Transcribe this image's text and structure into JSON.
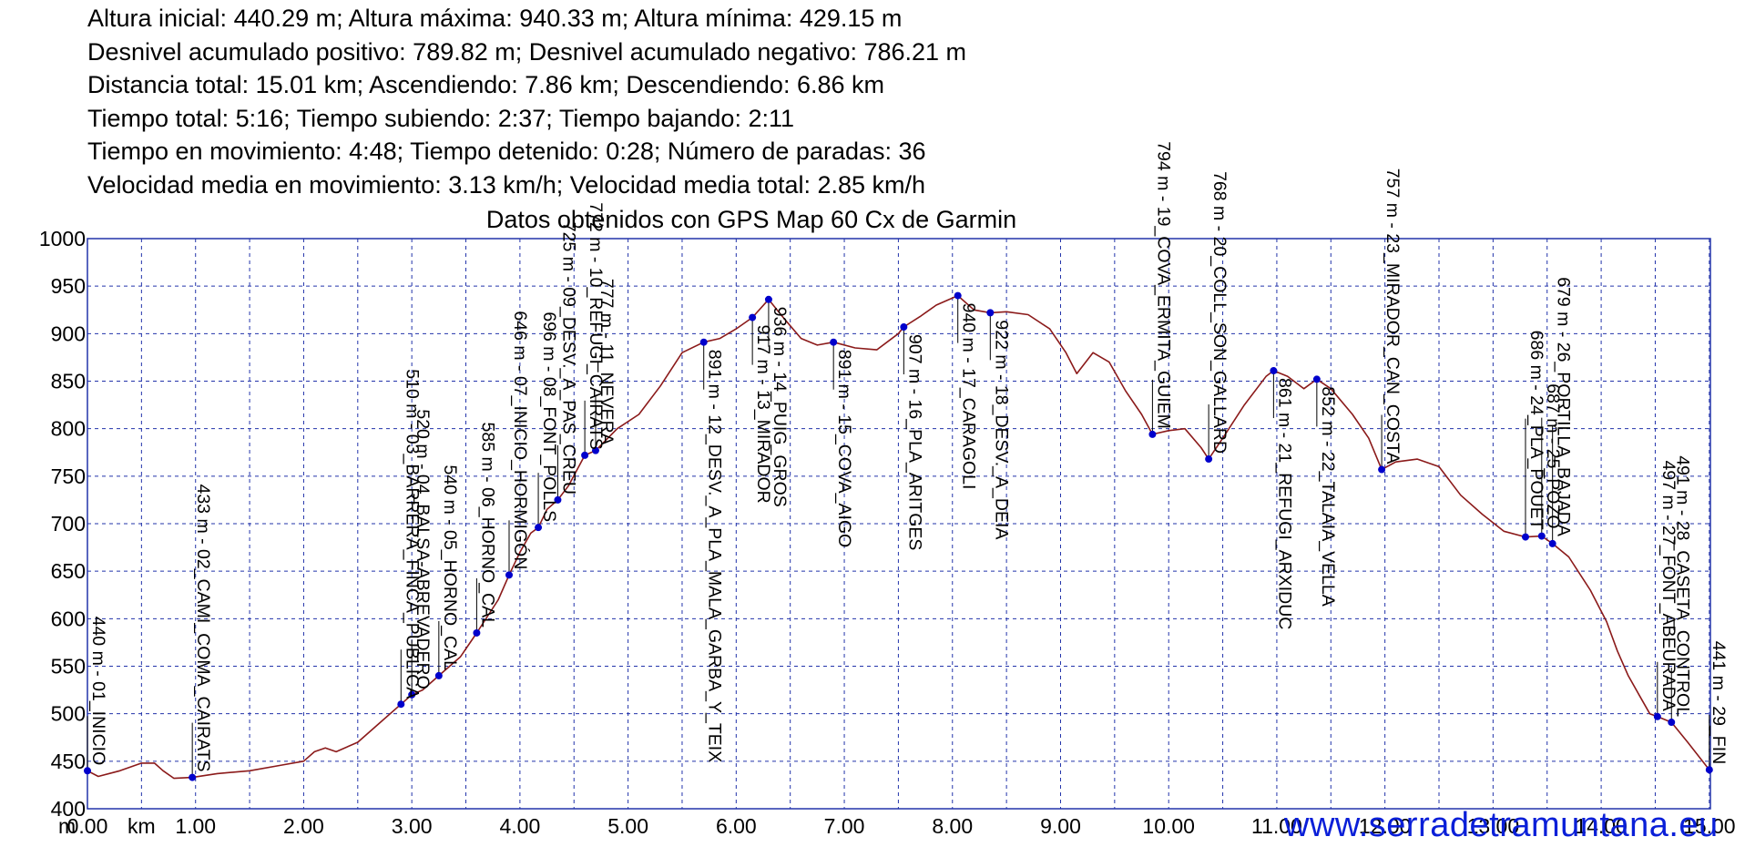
{
  "header": {
    "lines": [
      "Altura inicial: 440.29 m; Altura máxima: 940.33 m; Altura mínima: 429.15 m",
      "Desnivel acumulado positivo: 789.82 m; Desnivel acumulado negativo: 786.21 m",
      "Distancia total: 15.01 km; Ascendiendo: 7.86 km; Descendiendo: 6.86 km",
      "Tiempo total: 5:16; Tiempo subiendo: 2:37; Tiempo bajando: 2:11",
      "Tiempo en movimiento: 4:48; Tiempo detenido: 0:28; Número de paradas: 36",
      "Velocidad media en movimiento: 3.13 km/h; Velocidad media total: 2.85 km/h"
    ],
    "source": "Datos obtenidos con GPS Map 60 Cx de Garmin"
  },
  "watermark": "www.serradetramuntana.eu",
  "colors": {
    "profile": "#8b1a1a",
    "waypoint": "#0000cc",
    "grid": "#2233aa",
    "watermark": "#0a1fd8"
  },
  "chart_data": {
    "type": "line",
    "x_unit_label": "m",
    "x_unit_suffix": "km",
    "xlim": [
      0,
      15.01
    ],
    "ylim": [
      400,
      1000
    ],
    "x_ticks": [
      0,
      1,
      2,
      3,
      4,
      5,
      6,
      7,
      8,
      9,
      10,
      11,
      12,
      13,
      14,
      15
    ],
    "x_tick_labels": [
      "0.00",
      "1.00",
      "2.00",
      "3.00",
      "4.00",
      "5.00",
      "6.00",
      "7.00",
      "8.00",
      "9.00",
      "10.00",
      "11.00",
      "12.00",
      "13.00",
      "14.00",
      "15.00"
    ],
    "y_ticks": [
      400,
      450,
      500,
      550,
      600,
      650,
      700,
      750,
      800,
      850,
      900,
      950,
      1000
    ],
    "grid": true,
    "profile": [
      [
        0,
        440
      ],
      [
        0.1,
        434
      ],
      [
        0.3,
        440
      ],
      [
        0.5,
        448
      ],
      [
        0.62,
        448
      ],
      [
        0.7,
        440
      ],
      [
        0.8,
        432
      ],
      [
        0.97,
        433
      ],
      [
        1.2,
        437
      ],
      [
        1.5,
        440
      ],
      [
        1.8,
        446
      ],
      [
        2.0,
        450
      ],
      [
        2.1,
        460
      ],
      [
        2.2,
        464
      ],
      [
        2.3,
        460
      ],
      [
        2.5,
        470
      ],
      [
        2.7,
        490
      ],
      [
        2.9,
        510
      ],
      [
        3.0,
        520
      ],
      [
        3.1,
        525
      ],
      [
        3.25,
        540
      ],
      [
        3.45,
        560
      ],
      [
        3.6,
        585
      ],
      [
        3.8,
        620
      ],
      [
        3.9,
        646
      ],
      [
        4.0,
        670
      ],
      [
        4.1,
        690
      ],
      [
        4.17,
        696
      ],
      [
        4.25,
        715
      ],
      [
        4.35,
        725
      ],
      [
        4.45,
        740
      ],
      [
        4.6,
        772
      ],
      [
        4.7,
        777
      ],
      [
        4.9,
        800
      ],
      [
        5.1,
        815
      ],
      [
        5.3,
        845
      ],
      [
        5.5,
        880
      ],
      [
        5.7,
        891
      ],
      [
        5.85,
        895
      ],
      [
        6.0,
        905
      ],
      [
        6.15,
        917
      ],
      [
        6.3,
        936
      ],
      [
        6.45,
        915
      ],
      [
        6.6,
        895
      ],
      [
        6.75,
        888
      ],
      [
        6.9,
        891
      ],
      [
        7.1,
        885
      ],
      [
        7.3,
        883
      ],
      [
        7.5,
        900
      ],
      [
        7.55,
        907
      ],
      [
        7.7,
        918
      ],
      [
        7.85,
        930
      ],
      [
        8.05,
        940
      ],
      [
        8.2,
        925
      ],
      [
        8.35,
        922
      ],
      [
        8.5,
        923
      ],
      [
        8.7,
        920
      ],
      [
        8.9,
        905
      ],
      [
        9.05,
        880
      ],
      [
        9.15,
        858
      ],
      [
        9.3,
        880
      ],
      [
        9.45,
        870
      ],
      [
        9.6,
        840
      ],
      [
        9.75,
        815
      ],
      [
        9.85,
        794
      ],
      [
        10.0,
        798
      ],
      [
        10.15,
        800
      ],
      [
        10.3,
        780
      ],
      [
        10.37,
        768
      ],
      [
        10.5,
        790
      ],
      [
        10.7,
        825
      ],
      [
        10.9,
        855
      ],
      [
        10.97,
        861
      ],
      [
        11.1,
        855
      ],
      [
        11.25,
        842
      ],
      [
        11.37,
        852
      ],
      [
        11.5,
        842
      ],
      [
        11.7,
        815
      ],
      [
        11.85,
        790
      ],
      [
        11.97,
        757
      ],
      [
        12.1,
        765
      ],
      [
        12.3,
        768
      ],
      [
        12.5,
        760
      ],
      [
        12.7,
        730
      ],
      [
        12.9,
        710
      ],
      [
        13.1,
        692
      ],
      [
        13.3,
        686
      ],
      [
        13.45,
        687
      ],
      [
        13.55,
        679
      ],
      [
        13.7,
        665
      ],
      [
        13.9,
        630
      ],
      [
        14.05,
        597
      ],
      [
        14.15,
        566
      ],
      [
        14.25,
        540
      ],
      [
        14.35,
        520
      ],
      [
        14.45,
        500
      ],
      [
        14.52,
        497
      ],
      [
        14.65,
        491
      ],
      [
        14.8,
        470
      ],
      [
        15.0,
        441
      ]
    ],
    "waypoints": [
      {
        "x": 0.0,
        "y": 440,
        "label": "440 m - 01_INICIO"
      },
      {
        "x": 0.97,
        "y": 433,
        "label": "433 m - 02_CAMI_COMA_CAIRATS"
      },
      {
        "x": 2.9,
        "y": 510,
        "label": "510 m - 03_BARRERA_FINCA_PUBLICA"
      },
      {
        "x": 3.0,
        "y": 520,
        "label": "520 m - 04_BALSA-ABREVADERO"
      },
      {
        "x": 3.25,
        "y": 540,
        "label": "540 m - 05_HORNO_CAL"
      },
      {
        "x": 3.6,
        "y": 585,
        "label": "585 m - 06_HORNO_CAL"
      },
      {
        "x": 3.9,
        "y": 646,
        "label": "646 m - 07_INICIO_HORMIGÓN"
      },
      {
        "x": 4.17,
        "y": 696,
        "label": "696 m - 08_FONT_POLLS"
      },
      {
        "x": 4.35,
        "y": 725,
        "label": "725 m - 09_DESV._A_PAS_CREU"
      },
      {
        "x": 4.6,
        "y": 772,
        "label": "772 m - 10_REFUGI_CAIRATS"
      },
      {
        "x": 4.7,
        "y": 777,
        "label": "777 m - 11_NEVERA"
      },
      {
        "x": 5.7,
        "y": 891,
        "label": "891 m - 12_DESV._A_PLA_MALA_GARBA_Y_TEIX"
      },
      {
        "x": 6.15,
        "y": 917,
        "label": "917 m - 13_MIRADOR"
      },
      {
        "x": 6.3,
        "y": 936,
        "label": "936 m - 14_PUIG_GROS"
      },
      {
        "x": 6.9,
        "y": 891,
        "label": "891 m - 15_COVA_AIGO"
      },
      {
        "x": 7.55,
        "y": 907,
        "label": "907 m - 16_PLA_ARITGES"
      },
      {
        "x": 8.05,
        "y": 940,
        "label": "940 m - 17_CARAGOLI"
      },
      {
        "x": 8.35,
        "y": 922,
        "label": "922 m - 18_DESV._A_DEIA"
      },
      {
        "x": 9.85,
        "y": 794,
        "label": "794 m - 19_COVA_ERMITA_GUIEM"
      },
      {
        "x": 10.37,
        "y": 768,
        "label": "768 m - 20_COLL_SON_GALLARD"
      },
      {
        "x": 10.97,
        "y": 861,
        "label": "861 m - 21_REFUGI_ARXIDUC"
      },
      {
        "x": 11.37,
        "y": 852,
        "label": "852 m - 22_TALAIA_VELLA"
      },
      {
        "x": 11.97,
        "y": 757,
        "label": "757 m - 23_MIRADOR_CAN_COSTA"
      },
      {
        "x": 13.3,
        "y": 686,
        "label": "686 m - 24_PLA_POUET"
      },
      {
        "x": 13.45,
        "y": 687,
        "label": "687 m - 25_POZO"
      },
      {
        "x": 13.55,
        "y": 679,
        "label": "679 m - 26_PORTILLA_BAJADA"
      },
      {
        "x": 14.52,
        "y": 497,
        "label": "497 m - 27_FONT_ABEURADA"
      },
      {
        "x": 14.65,
        "y": 491,
        "label": "491 m - 28_CASETA_CONTROL"
      },
      {
        "x": 15.0,
        "y": 441,
        "label": "441 m - 29_FIN"
      }
    ]
  }
}
